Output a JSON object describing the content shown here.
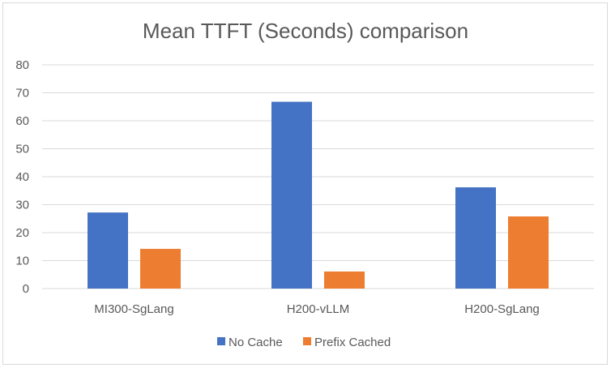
{
  "chart_data": {
    "type": "bar",
    "title": "Mean TTFT (Seconds) comparison",
    "xlabel": "",
    "ylabel": "",
    "categories": [
      "MI300-SgLang",
      "H200-vLLM",
      "H200-SgLang"
    ],
    "series": [
      {
        "name": "No Cache",
        "values": [
          27.2,
          66.8,
          36.2
        ],
        "color": "#4472c4"
      },
      {
        "name": "Prefix Cached",
        "values": [
          14.2,
          6.1,
          25.8
        ],
        "color": "#ed7d31"
      }
    ],
    "ylim": [
      0,
      80
    ],
    "yticks": [
      0,
      10,
      20,
      30,
      40,
      50,
      60,
      70,
      80
    ],
    "grid": true,
    "legend_position": "bottom",
    "colors": {
      "gridline": "#d9d9d9",
      "text": "#595959",
      "border": "#d9d9d9"
    }
  }
}
